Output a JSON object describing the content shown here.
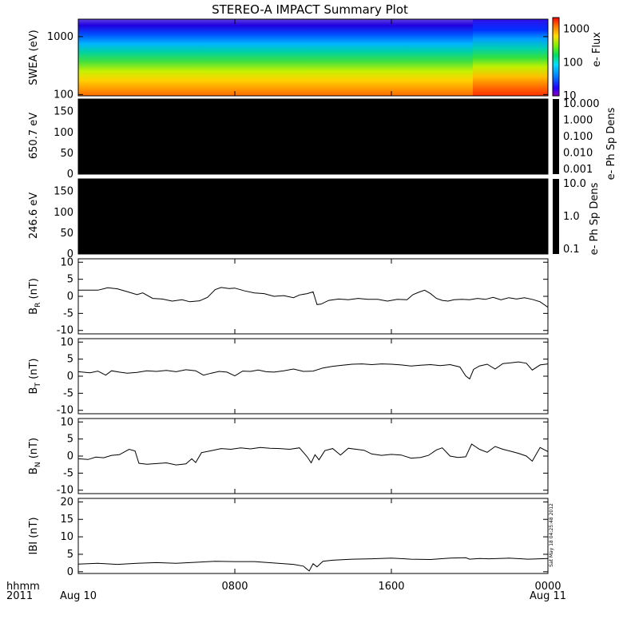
{
  "chart_data": {
    "title": "STEREO-A IMPACT Summary Plot",
    "time_axis": {
      "ticks": [
        "0800",
        "1600"
      ],
      "start_top": "Aug 10",
      "end_top": "0000",
      "end_bottom": "Aug 11",
      "left_top": "hhmm",
      "left_bottom": "2011",
      "range_hours": [
        0,
        24
      ],
      "tick_hours": [
        0,
        8,
        16,
        24
      ]
    },
    "panels": [
      {
        "id": "swea",
        "type": "heatmap",
        "ylabel": "SWEA (eV)",
        "ytick_labels": [
          "1000",
          "100"
        ],
        "ytick_values": [
          1000,
          100
        ],
        "ylim": [
          95,
          2000
        ],
        "ylog": true,
        "colorbar": {
          "label": "e- Flux",
          "tick_labels": [
            "1000",
            "100",
            "10"
          ],
          "tick_values": [
            1000,
            100,
            10
          ],
          "range": [
            10,
            2000
          ],
          "log": true
        },
        "description_cols": "rainbow energy spectrogram: red at low energy, violet at high energy; brighter after ~20h"
      },
      {
        "id": "pad650",
        "type": "heatmap",
        "ylabel": "650.7 eV",
        "ytick_labels": [
          "150",
          "100",
          "50",
          "0"
        ],
        "ytick_values": [
          150,
          100,
          50,
          0
        ],
        "ylim": [
          0,
          180
        ],
        "fill": "#000000",
        "colorbar": {
          "label": "e- Ph Sp Dens",
          "tick_labels": [
            "10.000",
            "1.000",
            "0.100",
            "0.010",
            "0.001"
          ],
          "tick_values": [
            10,
            1,
            0.1,
            0.01,
            0.001
          ],
          "log": true,
          "fill": "#000000"
        }
      },
      {
        "id": "pad246",
        "type": "heatmap",
        "ylabel": "246.6 eV",
        "ytick_labels": [
          "150",
          "100",
          "50",
          "0"
        ],
        "ytick_values": [
          150,
          100,
          50,
          0
        ],
        "ylim": [
          0,
          180
        ],
        "fill": "#000000",
        "colorbar": {
          "label": "e- Ph Sp Dens",
          "tick_labels": [
            "10.0",
            "1.0",
            "0.1"
          ],
          "tick_values": [
            10,
            1,
            0.1
          ],
          "log": true,
          "fill": "#000000"
        }
      },
      {
        "id": "br",
        "type": "line",
        "ylabel": "B",
        "ylabel_sub": "R",
        "ylabel_unit": " (nT)",
        "ytick_labels": [
          "10",
          "5",
          "0",
          "-5",
          "-10"
        ],
        "ytick_values": [
          10,
          5,
          0,
          -5,
          -10
        ],
        "ylim": [
          -11,
          11
        ],
        "x": [
          0,
          1.0,
          1.5,
          2.0,
          2.6,
          3.0,
          3.3,
          3.8,
          4.3,
          4.8,
          5.3,
          5.7,
          6.2,
          6.6,
          7.0,
          7.3,
          7.7,
          8.0,
          8.5,
          9.0,
          9.5,
          10.0,
          10.5,
          11.0,
          11.3,
          11.7,
          12.0,
          12.2,
          12.4,
          12.8,
          13.3,
          13.8,
          14.3,
          14.8,
          15.3,
          15.8,
          16.3,
          16.8,
          17.1,
          17.4,
          17.7,
          18.0,
          18.3,
          18.6,
          18.9,
          19.2,
          19.6,
          20.0,
          20.4,
          20.8,
          21.2,
          21.6,
          22.0,
          22.4,
          22.8,
          23.2,
          23.6,
          24.0
        ],
        "y": [
          1.8,
          1.8,
          2.5,
          2.2,
          1.2,
          0.5,
          1.0,
          -0.6,
          -0.8,
          -1.4,
          -1.0,
          -1.6,
          -1.3,
          -0.3,
          2.0,
          2.6,
          2.3,
          2.4,
          1.6,
          1.0,
          0.8,
          0.0,
          0.2,
          -0.4,
          0.4,
          0.8,
          1.3,
          -2.4,
          -2.3,
          -1.2,
          -0.8,
          -1.0,
          -0.6,
          -0.9,
          -0.9,
          -1.4,
          -0.9,
          -1.0,
          0.5,
          1.2,
          1.8,
          0.8,
          -0.6,
          -1.2,
          -1.4,
          -1.0,
          -0.9,
          -1.0,
          -0.6,
          -0.9,
          -0.3,
          -1.0,
          -0.4,
          -0.8,
          -0.4,
          -0.9,
          -1.6,
          -3.2
        ]
      },
      {
        "id": "bt",
        "type": "line",
        "ylabel": "B",
        "ylabel_sub": "T",
        "ylabel_unit": " (nT)",
        "ytick_labels": [
          "10",
          "5",
          "0",
          "-5",
          "-10"
        ],
        "ytick_values": [
          10,
          5,
          0,
          -5,
          -10
        ],
        "ylim": [
          -11,
          11
        ],
        "x": [
          0,
          0.6,
          1.0,
          1.4,
          1.7,
          2.1,
          2.5,
          3.0,
          3.5,
          4.0,
          4.5,
          5.0,
          5.5,
          6.0,
          6.4,
          6.8,
          7.2,
          7.6,
          8.0,
          8.4,
          8.8,
          9.2,
          9.6,
          10.0,
          10.5,
          11.0,
          11.5,
          12.0,
          12.5,
          13.0,
          13.5,
          14.0,
          14.5,
          15.0,
          15.5,
          16.0,
          16.5,
          17.0,
          17.5,
          18.0,
          18.5,
          19.0,
          19.5,
          19.8,
          20.0,
          20.2,
          20.5,
          20.9,
          21.3,
          21.7,
          22.1,
          22.5,
          22.9,
          23.2,
          23.6,
          24.0
        ],
        "y": [
          1.3,
          1.0,
          1.5,
          0.3,
          1.6,
          1.2,
          0.9,
          1.1,
          1.6,
          1.4,
          1.7,
          1.3,
          1.9,
          1.6,
          0.3,
          0.9,
          1.4,
          1.2,
          0.1,
          1.5,
          1.4,
          1.8,
          1.3,
          1.2,
          1.6,
          2.1,
          1.4,
          1.5,
          2.4,
          2.9,
          3.2,
          3.5,
          3.6,
          3.4,
          3.6,
          3.5,
          3.3,
          3.0,
          3.2,
          3.4,
          3.1,
          3.4,
          2.7,
          0.1,
          -0.8,
          2.0,
          3.0,
          3.5,
          2.1,
          3.7,
          3.9,
          4.2,
          3.8,
          1.8,
          3.3,
          3.6
        ]
      },
      {
        "id": "bn",
        "type": "line",
        "ylabel": "B",
        "ylabel_sub": "N",
        "ylabel_unit": " (nT)",
        "ytick_labels": [
          "10",
          "5",
          "0",
          "-5",
          "-10"
        ],
        "ytick_values": [
          10,
          5,
          0,
          -5,
          -10
        ],
        "ylim": [
          -11,
          11
        ],
        "x": [
          0,
          0.5,
          0.9,
          1.3,
          1.7,
          2.1,
          2.6,
          2.9,
          3.1,
          3.5,
          4.0,
          4.5,
          5.0,
          5.5,
          5.8,
          6.0,
          6.3,
          6.8,
          7.3,
          7.8,
          8.3,
          8.8,
          9.3,
          9.8,
          10.3,
          10.8,
          11.3,
          11.7,
          11.9,
          12.1,
          12.3,
          12.6,
          13.0,
          13.4,
          13.8,
          14.2,
          14.6,
          15.0,
          15.5,
          16.0,
          16.5,
          17.0,
          17.5,
          17.9,
          18.3,
          18.6,
          19.0,
          19.4,
          19.8,
          20.1,
          20.5,
          20.9,
          21.3,
          21.7,
          22.1,
          22.5,
          22.9,
          23.2,
          23.6,
          24.0
        ],
        "y": [
          -0.8,
          -1.0,
          -0.3,
          -0.5,
          0.2,
          0.4,
          2.0,
          1.5,
          -2.1,
          -2.4,
          -2.2,
          -2.0,
          -2.6,
          -2.3,
          -0.8,
          -1.9,
          1.0,
          1.6,
          2.2,
          2.0,
          2.4,
          2.1,
          2.5,
          2.3,
          2.2,
          2.0,
          2.4,
          -0.2,
          -2.0,
          0.4,
          -1.1,
          1.6,
          2.2,
          0.3,
          2.3,
          2.0,
          1.7,
          0.6,
          0.2,
          0.5,
          0.3,
          -0.6,
          -0.4,
          0.2,
          1.8,
          2.4,
          0.0,
          -0.4,
          -0.2,
          3.5,
          2.0,
          1.1,
          2.8,
          2.0,
          1.4,
          0.8,
          0.0,
          -1.5,
          2.5,
          1.3
        ]
      },
      {
        "id": "bmag",
        "type": "line",
        "ylabel": "IBI (nT)",
        "ytick_labels": [
          "20",
          "15",
          "10",
          "5",
          "0"
        ],
        "ytick_values": [
          20,
          15,
          10,
          5,
          0
        ],
        "ylim": [
          -0.5,
          21
        ],
        "side_text": "Sat May 18 04:25:48 2012",
        "x": [
          0,
          1.0,
          2.0,
          3.0,
          4.0,
          5.0,
          6.0,
          7.0,
          8.0,
          9.0,
          10.0,
          11.0,
          11.5,
          11.8,
          12.0,
          12.2,
          12.5,
          13.0,
          14.0,
          15.0,
          16.0,
          17.0,
          18.0,
          19.0,
          19.8,
          20.0,
          20.5,
          21.0,
          22.0,
          23.0,
          24.0
        ],
        "y": [
          2.2,
          2.4,
          2.1,
          2.4,
          2.6,
          2.4,
          2.7,
          3.0,
          2.9,
          2.9,
          2.5,
          2.1,
          1.6,
          0.2,
          2.3,
          1.4,
          3.0,
          3.3,
          3.6,
          3.7,
          3.9,
          3.6,
          3.5,
          3.9,
          4.0,
          3.6,
          3.8,
          3.7,
          3.9,
          3.6,
          3.8
        ]
      }
    ]
  }
}
